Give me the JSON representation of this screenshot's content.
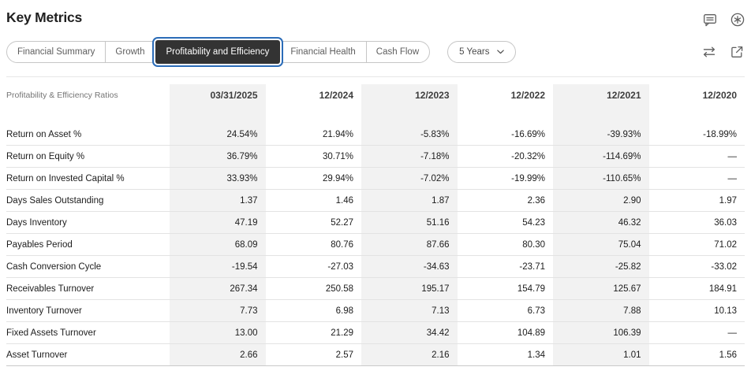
{
  "page": {
    "title": "Key Metrics"
  },
  "header_icons": [
    {
      "name": "comment-icon"
    },
    {
      "name": "circled-asterisk-icon"
    }
  ],
  "toolbar": {
    "tabs": [
      {
        "label": "Financial Summary",
        "selected": false
      },
      {
        "label": "Growth",
        "selected": false
      },
      {
        "label": "Profitability and Efficiency",
        "selected": true
      },
      {
        "label": "Financial Health",
        "selected": false
      },
      {
        "label": "Cash Flow",
        "selected": false
      }
    ],
    "period_selector": {
      "label": "5 Years"
    },
    "icons": [
      {
        "name": "swap-arrows-icon"
      },
      {
        "name": "export-icon"
      }
    ]
  },
  "table": {
    "header_label": "Profitability & Efficiency Ratios",
    "columns": [
      "03/31/2025",
      "12/2024",
      "12/2023",
      "12/2022",
      "12/2021",
      "12/2020"
    ],
    "rows": [
      {
        "label": "Return on Asset %",
        "values": [
          "24.54%",
          "21.94%",
          "-5.83%",
          "-16.69%",
          "-39.93%",
          "-18.99%"
        ]
      },
      {
        "label": "Return on Equity %",
        "values": [
          "36.79%",
          "30.71%",
          "-7.18%",
          "-20.32%",
          "-114.69%",
          "—"
        ]
      },
      {
        "label": "Return on Invested Capital %",
        "values": [
          "33.93%",
          "29.94%",
          "-7.02%",
          "-19.99%",
          "-110.65%",
          "—"
        ]
      },
      {
        "label": "Days Sales Outstanding",
        "values": [
          "1.37",
          "1.46",
          "1.87",
          "2.36",
          "2.90",
          "1.97"
        ]
      },
      {
        "label": "Days Inventory",
        "values": [
          "47.19",
          "52.27",
          "51.16",
          "54.23",
          "46.32",
          "36.03"
        ]
      },
      {
        "label": "Payables Period",
        "values": [
          "68.09",
          "80.76",
          "87.66",
          "80.30",
          "75.04",
          "71.02"
        ]
      },
      {
        "label": "Cash Conversion Cycle",
        "values": [
          "-19.54",
          "-27.03",
          "-34.63",
          "-23.71",
          "-25.82",
          "-33.02"
        ]
      },
      {
        "label": "Receivables Turnover",
        "values": [
          "267.34",
          "250.58",
          "195.17",
          "154.79",
          "125.67",
          "184.91"
        ]
      },
      {
        "label": "Inventory Turnover",
        "values": [
          "7.73",
          "6.98",
          "7.13",
          "6.73",
          "7.88",
          "10.13"
        ]
      },
      {
        "label": "Fixed Assets Turnover",
        "values": [
          "13.00",
          "21.29",
          "34.42",
          "104.89",
          "106.39",
          "—"
        ]
      },
      {
        "label": "Asset Turnover",
        "values": [
          "2.66",
          "2.57",
          "2.16",
          "1.34",
          "1.01",
          "1.56"
        ]
      }
    ]
  },
  "colors": {
    "accent_blue": "#2b6cb8",
    "selected_tab_bg": "#333333",
    "shaded_column": "#f2f2f2",
    "icon_gray": "#5f5f5f"
  }
}
